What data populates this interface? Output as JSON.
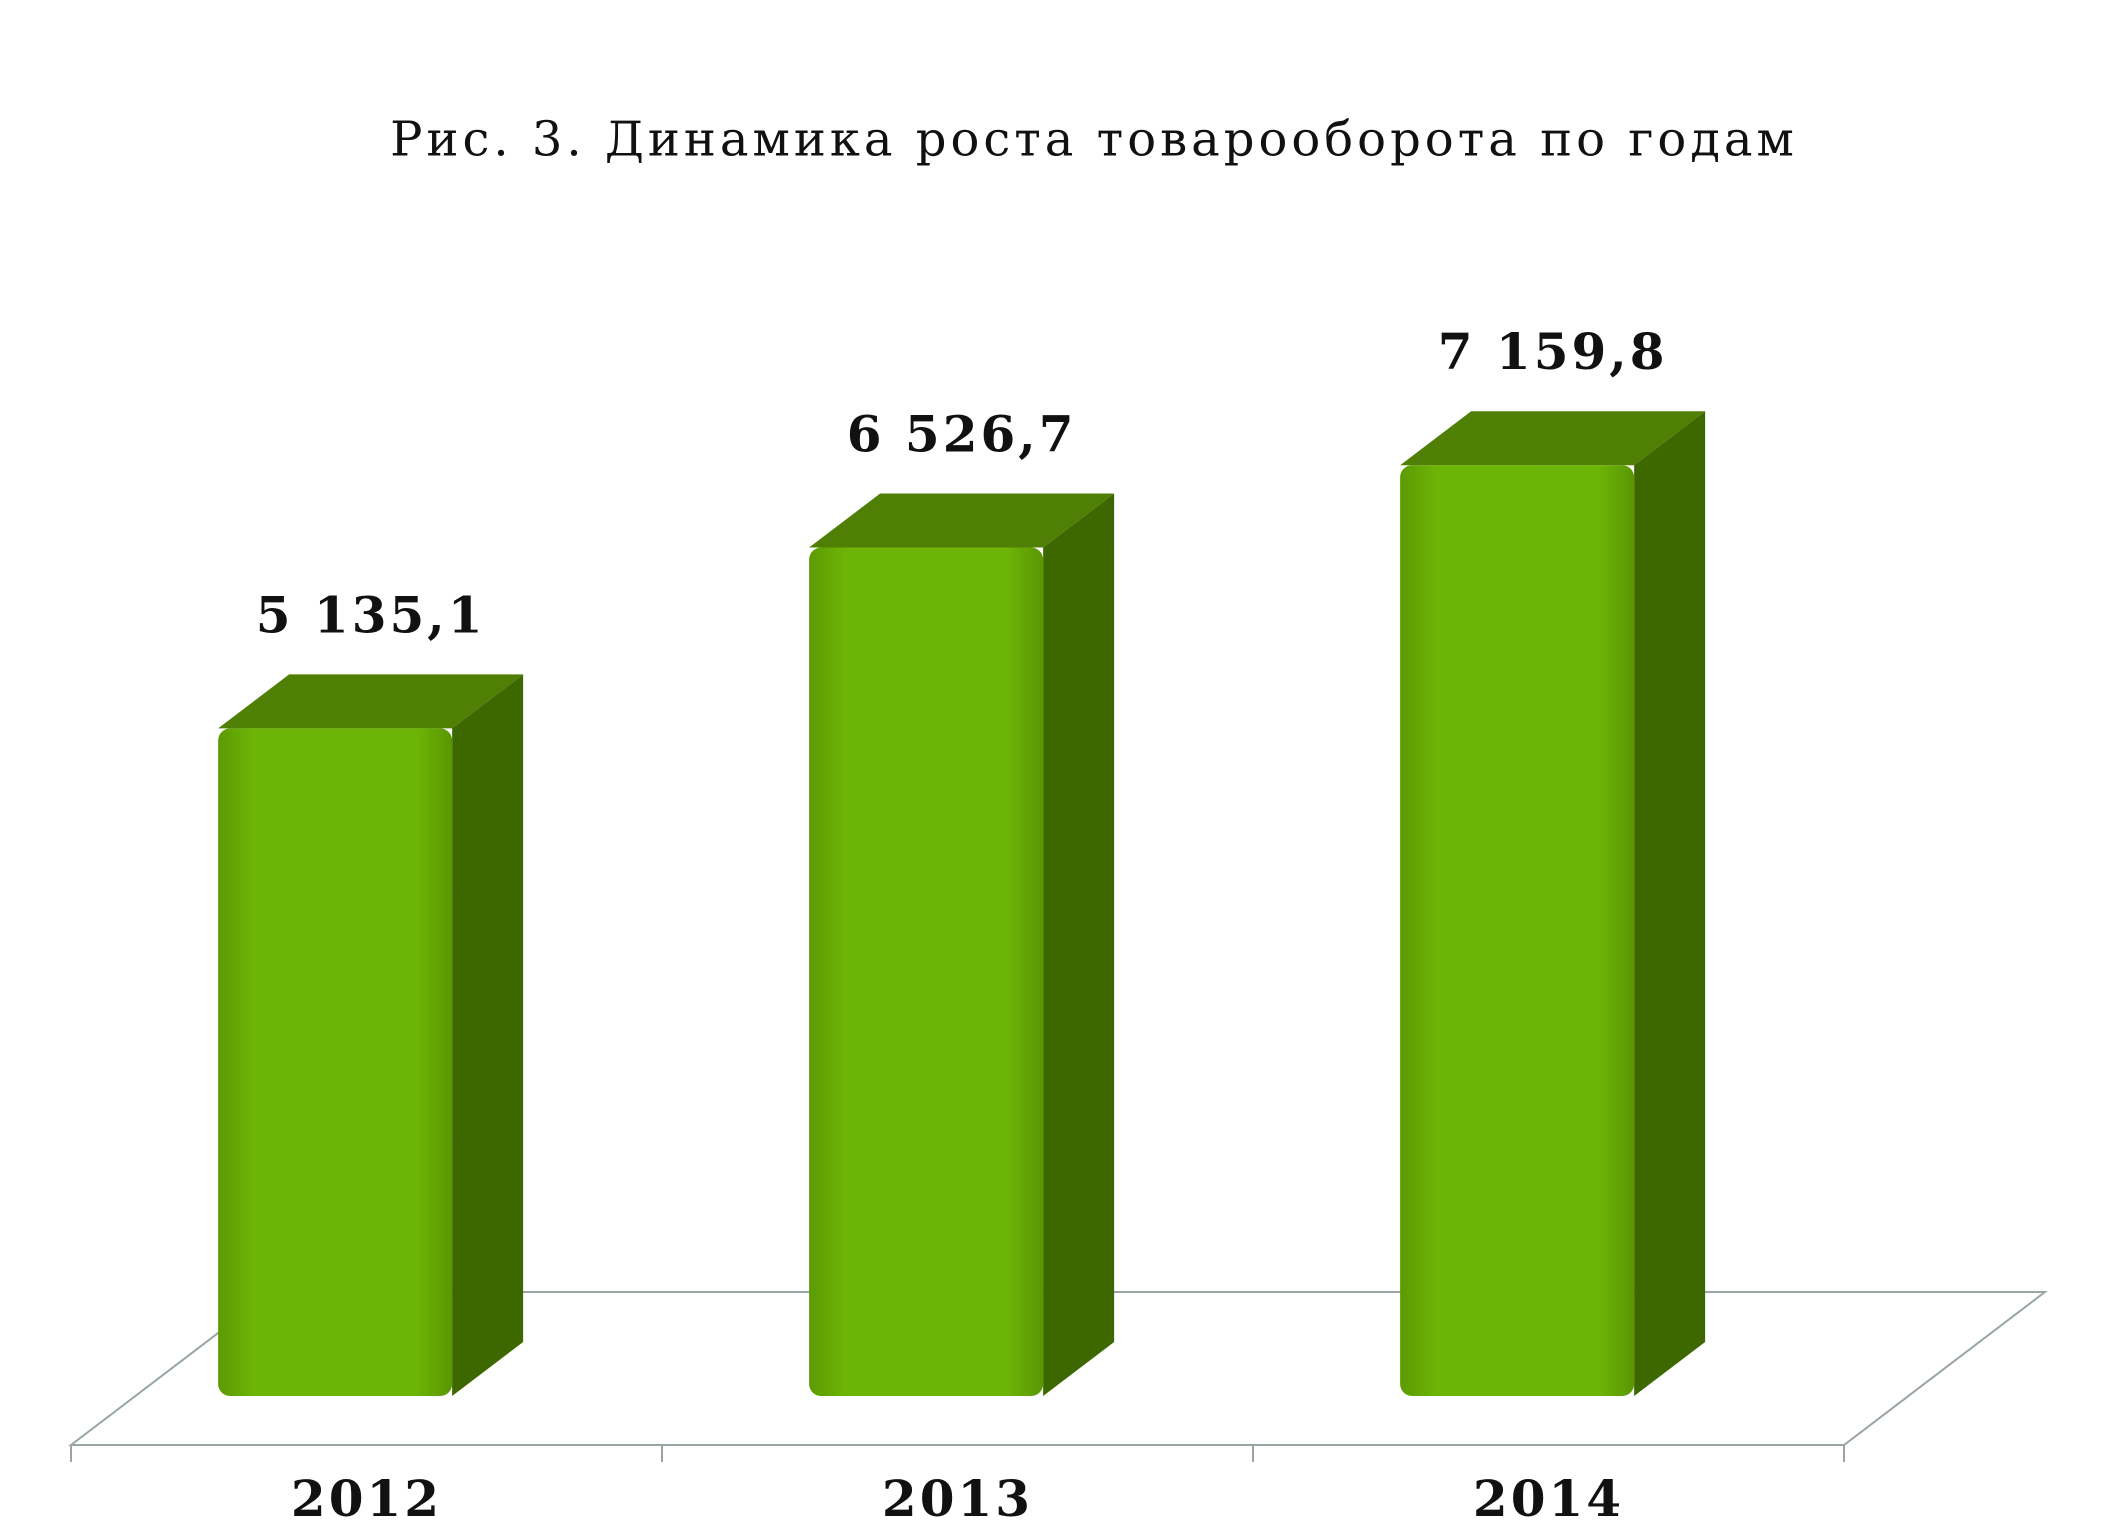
{
  "chart_data": {
    "type": "bar3d",
    "title": "Рис. 3. Динамика роста товарооборота по годам",
    "categories": [
      "2012",
      "2013",
      "2014"
    ],
    "values": [
      5135.1,
      6526.7,
      7159.8
    ],
    "value_labels": [
      "5 135,1",
      "6 526,7",
      "7 159,8"
    ],
    "color": "#69b104"
  }
}
